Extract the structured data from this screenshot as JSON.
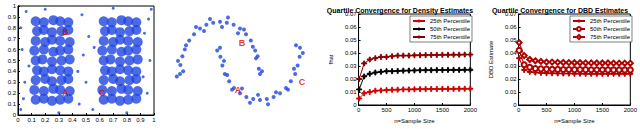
{
  "chart_data": [
    {
      "type": "scatter",
      "xlim": [
        0,
        1
      ],
      "ylim": [
        0,
        1
      ],
      "xticks": [
        0,
        0.1,
        0.2,
        0.3,
        0.4,
        0.5,
        0.6,
        0.7,
        0.8,
        0.9,
        1
      ],
      "yticks": [
        0,
        0.1,
        0.2,
        0.3,
        0.4,
        0.5,
        0.6,
        0.7,
        0.8,
        0.9,
        1
      ],
      "series": [
        {
          "color": "#1f45e0",
          "values": [
            [
              0.13,
              0.14
            ],
            [
              0.19,
              0.15
            ],
            [
              0.25,
              0.13
            ],
            [
              0.31,
              0.14
            ],
            [
              0.37,
              0.15
            ],
            [
              0.12,
              0.23
            ],
            [
              0.19,
              0.22
            ],
            [
              0.26,
              0.24
            ],
            [
              0.31,
              0.23
            ],
            [
              0.38,
              0.22
            ],
            [
              0.13,
              0.32
            ],
            [
              0.2,
              0.33
            ],
            [
              0.25,
              0.31
            ],
            [
              0.32,
              0.32
            ],
            [
              0.37,
              0.33
            ],
            [
              0.14,
              0.41
            ],
            [
              0.19,
              0.4
            ],
            [
              0.25,
              0.42
            ],
            [
              0.31,
              0.41
            ],
            [
              0.37,
              0.4
            ],
            [
              0.13,
              0.5
            ],
            [
              0.18,
              0.51
            ],
            [
              0.25,
              0.49
            ],
            [
              0.32,
              0.5
            ],
            [
              0.38,
              0.51
            ],
            [
              0.12,
              0.59
            ],
            [
              0.19,
              0.6
            ],
            [
              0.26,
              0.58
            ],
            [
              0.31,
              0.59
            ],
            [
              0.37,
              0.6
            ],
            [
              0.13,
              0.68
            ],
            [
              0.2,
              0.67
            ],
            [
              0.25,
              0.69
            ],
            [
              0.31,
              0.68
            ],
            [
              0.38,
              0.67
            ],
            [
              0.14,
              0.77
            ],
            [
              0.19,
              0.78
            ],
            [
              0.25,
              0.76
            ],
            [
              0.32,
              0.77
            ],
            [
              0.37,
              0.78
            ],
            [
              0.13,
              0.86
            ],
            [
              0.19,
              0.85
            ],
            [
              0.26,
              0.87
            ],
            [
              0.31,
              0.86
            ],
            [
              0.37,
              0.85
            ],
            [
              0.63,
              0.14
            ],
            [
              0.69,
              0.15
            ],
            [
              0.75,
              0.13
            ],
            [
              0.81,
              0.14
            ],
            [
              0.87,
              0.15
            ],
            [
              0.62,
              0.23
            ],
            [
              0.69,
              0.22
            ],
            [
              0.76,
              0.24
            ],
            [
              0.81,
              0.23
            ],
            [
              0.88,
              0.22
            ],
            [
              0.63,
              0.32
            ],
            [
              0.7,
              0.33
            ],
            [
              0.75,
              0.31
            ],
            [
              0.82,
              0.32
            ],
            [
              0.87,
              0.33
            ],
            [
              0.64,
              0.41
            ],
            [
              0.69,
              0.4
            ],
            [
              0.75,
              0.42
            ],
            [
              0.81,
              0.41
            ],
            [
              0.87,
              0.4
            ],
            [
              0.63,
              0.5
            ],
            [
              0.68,
              0.51
            ],
            [
              0.75,
              0.49
            ],
            [
              0.82,
              0.5
            ],
            [
              0.88,
              0.51
            ],
            [
              0.62,
              0.59
            ],
            [
              0.69,
              0.6
            ],
            [
              0.76,
              0.58
            ],
            [
              0.81,
              0.59
            ],
            [
              0.87,
              0.6
            ],
            [
              0.63,
              0.68
            ],
            [
              0.7,
              0.67
            ],
            [
              0.75,
              0.69
            ],
            [
              0.81,
              0.68
            ],
            [
              0.88,
              0.67
            ],
            [
              0.64,
              0.77
            ],
            [
              0.69,
              0.78
            ],
            [
              0.75,
              0.76
            ],
            [
              0.82,
              0.77
            ],
            [
              0.87,
              0.78
            ],
            [
              0.63,
              0.86
            ],
            [
              0.69,
              0.85
            ],
            [
              0.76,
              0.87
            ],
            [
              0.81,
              0.86
            ],
            [
              0.87,
              0.85
            ]
          ]
        },
        {
          "color": "#1f45e0",
          "values": [
            [
              0.02,
              0.05
            ],
            [
              0.05,
              0.3
            ],
            [
              0.03,
              0.6
            ],
            [
              0.06,
              0.95
            ],
            [
              0.02,
              0.8
            ],
            [
              0.45,
              0.1
            ],
            [
              0.5,
              0.3
            ],
            [
              0.48,
              0.55
            ],
            [
              0.52,
              0.72
            ],
            [
              0.47,
              0.92
            ],
            [
              0.55,
              0.05
            ],
            [
              0.95,
              0.2
            ],
            [
              0.97,
              0.5
            ],
            [
              0.93,
              0.75
            ],
            [
              0.98,
              0.97
            ],
            [
              0.2,
              0.97
            ],
            [
              0.3,
              0.02
            ],
            [
              0.7,
              0.98
            ],
            [
              0.8,
              0.02
            ],
            [
              0.44,
              0.4
            ],
            [
              0.56,
              0.62
            ],
            [
              0.08,
              0.45
            ],
            [
              0.92,
              0.35
            ],
            [
              0.04,
              0.15
            ],
            [
              0.96,
              0.88
            ]
          ]
        }
      ],
      "annotations": [
        {
          "text": "B",
          "x": 0.35,
          "y": 0.76
        },
        {
          "text": "A",
          "x": 0.35,
          "y": 0.2
        },
        {
          "text": "C",
          "x": 0.62,
          "y": 0.2
        }
      ]
    },
    {
      "type": "scatter",
      "xlim": [
        -1.3,
        2.3
      ],
      "ylim": [
        -0.9,
        1.3
      ],
      "tick_labels": false,
      "series": [
        {
          "color": "#1f45e0",
          "values": [
            [
              1,
              0
            ],
            [
              0.97,
              0.1
            ],
            [
              0.94,
              0.34
            ],
            [
              0.88,
              0.45
            ],
            [
              0.77,
              0.64
            ],
            [
              0.65,
              0.76
            ],
            [
              0.5,
              0.87
            ],
            [
              0.34,
              0.94
            ],
            [
              0.17,
              0.98
            ],
            [
              0,
              1.0
            ],
            [
              -0.17,
              0.98
            ],
            [
              -0.34,
              0.94
            ],
            [
              -0.5,
              0.87
            ],
            [
              -0.65,
              0.76
            ],
            [
              -0.77,
              0.64
            ],
            [
              -0.88,
              0.47
            ],
            [
              -0.94,
              0.34
            ],
            [
              -0.99,
              0.17
            ],
            [
              -1,
              0
            ],
            [
              1.05,
              0.05
            ],
            [
              0.9,
              0.3
            ],
            [
              0.82,
              0.52
            ],
            [
              0.6,
              0.85
            ],
            [
              0.45,
              0.78
            ],
            [
              0.2,
              1.08
            ],
            [
              0.05,
              0.9
            ],
            [
              -0.25,
              1.05
            ],
            [
              -0.4,
              0.82
            ],
            [
              -0.6,
              0.9
            ],
            [
              -0.85,
              0.55
            ],
            [
              -1.05,
              0.25
            ],
            [
              -0.92,
              0.05
            ],
            [
              -1.08,
              -0.05
            ],
            [
              0,
              0.5
            ],
            [
              0.01,
              0.33
            ],
            [
              0.06,
              0.16
            ],
            [
              0.12,
              0
            ],
            [
              0.23,
              -0.14
            ],
            [
              0.35,
              -0.27
            ],
            [
              0.5,
              -0.37
            ],
            [
              0.66,
              -0.44
            ],
            [
              0.83,
              -0.48
            ],
            [
              1,
              -0.5
            ],
            [
              1.17,
              -0.48
            ],
            [
              1.34,
              -0.44
            ],
            [
              1.5,
              -0.37
            ],
            [
              1.65,
              -0.27
            ],
            [
              1.77,
              -0.14
            ],
            [
              1.88,
              0
            ],
            [
              1.94,
              0.16
            ],
            [
              1.99,
              0.33
            ],
            [
              2,
              0.5
            ],
            [
              -0.07,
              0.45
            ],
            [
              0.1,
              0.25
            ],
            [
              0.18,
              -0.02
            ],
            [
              0.3,
              -0.3
            ],
            [
              0.55,
              -0.28
            ],
            [
              0.75,
              -0.55
            ],
            [
              0.95,
              -0.4
            ],
            [
              1.2,
              -0.58
            ],
            [
              1.4,
              -0.35
            ],
            [
              1.7,
              -0.3
            ],
            [
              1.85,
              0.1
            ],
            [
              2.07,
              0.4
            ],
            [
              1.9,
              0.55
            ]
          ]
        }
      ],
      "annotations": [
        {
          "text": "B",
          "x": 0.55,
          "y": 0.6
        },
        {
          "text": "A",
          "x": 0.45,
          "y": -0.3
        },
        {
          "text": "C",
          "x": 2.05,
          "y": -0.15
        }
      ]
    },
    {
      "type": "line",
      "title": "Quartile Convergence for Density Estimates",
      "xlabel": "n=Sample Size",
      "ylabel": "fhat",
      "x": [
        10,
        100,
        200,
        300,
        400,
        500,
        600,
        700,
        800,
        900,
        1000,
        1100,
        1200,
        1300,
        1400,
        1500,
        1600,
        1700,
        1800,
        1900,
        2000
      ],
      "xlim": [
        0,
        2000
      ],
      "xticks": [
        0,
        500,
        1000,
        1500,
        2000
      ],
      "ylim": [
        0,
        0.07
      ],
      "yticks": [
        0,
        0.01,
        0.02,
        0.03,
        0.04,
        0.05,
        0.06,
        0.07
      ],
      "legend": "upper right",
      "series": [
        {
          "name": "25th Percentile",
          "color": "#d40000",
          "marker": "plus",
          "values": [
            0.005,
            0.009,
            0.01,
            0.011,
            0.0112,
            0.0115,
            0.0117,
            0.0118,
            0.012,
            0.012,
            0.0121,
            0.0122,
            0.0122,
            0.0123,
            0.0123,
            0.0124,
            0.0124,
            0.0124,
            0.0125,
            0.0125,
            0.0125
          ]
        },
        {
          "name": "50th Percentile",
          "color": "#000000",
          "marker": "plus",
          "values": [
            0.012,
            0.022,
            0.024,
            0.025,
            0.0255,
            0.026,
            0.026,
            0.0262,
            0.0264,
            0.0265,
            0.0266,
            0.0267,
            0.0268,
            0.0268,
            0.0269,
            0.0269,
            0.027,
            0.027,
            0.027,
            0.0271,
            0.0271
          ]
        },
        {
          "name": "75th Percentile",
          "color": "#8b0000",
          "marker": "plus",
          "values": [
            0.02,
            0.032,
            0.035,
            0.036,
            0.037,
            0.037,
            0.0375,
            0.038,
            0.038,
            0.038,
            0.0382,
            0.0383,
            0.0384,
            0.0385,
            0.0385,
            0.0386,
            0.0386,
            0.0387,
            0.0387,
            0.0388,
            0.0388
          ]
        }
      ]
    },
    {
      "type": "line",
      "title": "Quartile Convergence for DBD Estimates",
      "xlabel": "n=Sample Size",
      "ylabel": "DBD Estimate",
      "x": [
        10,
        100,
        200,
        300,
        400,
        500,
        600,
        700,
        800,
        900,
        1000,
        1100,
        1200,
        1300,
        1400,
        1500,
        1600,
        1700,
        1800,
        1900,
        2000
      ],
      "xlim": [
        0,
        2000
      ],
      "xticks": [
        0,
        500,
        1000,
        1500,
        2000
      ],
      "ylim": [
        0,
        0.07
      ],
      "yticks": [
        0,
        0.01,
        0.02,
        0.03,
        0.04,
        0.05,
        0.06,
        0.07
      ],
      "legend": "upper right",
      "series": [
        {
          "name": "25th Percentile",
          "color": "#b00000",
          "marker": "plus",
          "values": [
            0.036,
            0.027,
            0.0255,
            0.025,
            0.0247,
            0.0245,
            0.0244,
            0.0243,
            0.0242,
            0.0242,
            0.0241,
            0.0241,
            0.024,
            0.024,
            0.024,
            0.024,
            0.024,
            0.024,
            0.024,
            0.024,
            0.024
          ]
        },
        {
          "name": "50th Percentile",
          "color": "#b00000",
          "marker": "circle",
          "values": [
            0.042,
            0.031,
            0.029,
            0.028,
            0.0278,
            0.0276,
            0.0275,
            0.0274,
            0.0273,
            0.0273,
            0.0272,
            0.0272,
            0.0272,
            0.0271,
            0.0271,
            0.0271,
            0.027,
            0.027,
            0.027,
            0.027,
            0.027
          ]
        },
        {
          "name": "75th Percentile",
          "color": "#b00000",
          "marker": "diamond",
          "values": [
            0.048,
            0.038,
            0.035,
            0.034,
            0.0335,
            0.033,
            0.033,
            0.0328,
            0.0327,
            0.0326,
            0.0325,
            0.0325,
            0.0324,
            0.0324,
            0.0323,
            0.0323,
            0.0323,
            0.0322,
            0.0322,
            0.0322,
            0.0322
          ]
        }
      ]
    }
  ]
}
